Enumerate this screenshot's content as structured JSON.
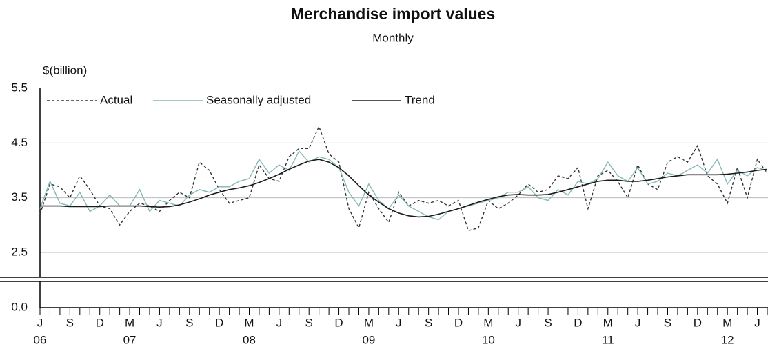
{
  "chart_data": {
    "type": "line",
    "title": "Merchandise import values",
    "subtitle": "Monthly",
    "y_label": "$(billion)",
    "x": [
      "2006-06",
      "2006-07",
      "2006-08",
      "2006-09",
      "2006-10",
      "2006-11",
      "2006-12",
      "2007-01",
      "2007-02",
      "2007-03",
      "2007-04",
      "2007-05",
      "2007-06",
      "2007-07",
      "2007-08",
      "2007-09",
      "2007-10",
      "2007-11",
      "2007-12",
      "2008-01",
      "2008-02",
      "2008-03",
      "2008-04",
      "2008-05",
      "2008-06",
      "2008-07",
      "2008-08",
      "2008-09",
      "2008-10",
      "2008-11",
      "2008-12",
      "2009-01",
      "2009-02",
      "2009-03",
      "2009-04",
      "2009-05",
      "2009-06",
      "2009-07",
      "2009-08",
      "2009-09",
      "2009-10",
      "2009-11",
      "2009-12",
      "2010-01",
      "2010-02",
      "2010-03",
      "2010-04",
      "2010-05",
      "2010-06",
      "2010-07",
      "2010-08",
      "2010-09",
      "2010-10",
      "2010-11",
      "2010-12",
      "2011-01",
      "2011-02",
      "2011-03",
      "2011-04",
      "2011-05",
      "2011-06",
      "2011-07",
      "2011-08",
      "2011-09",
      "2011-10",
      "2011-11",
      "2011-12",
      "2012-01",
      "2012-02",
      "2012-03",
      "2012-04",
      "2012-05",
      "2012-06",
      "2012-07"
    ],
    "series": [
      {
        "name": "Actual",
        "color": "#333333",
        "dashed": true,
        "values": [
          3.2,
          3.75,
          3.7,
          3.5,
          3.9,
          3.65,
          3.35,
          3.3,
          3.0,
          3.25,
          3.4,
          3.35,
          3.25,
          3.45,
          3.6,
          3.5,
          4.15,
          4.0,
          3.65,
          3.4,
          3.45,
          3.5,
          4.1,
          3.85,
          3.8,
          4.25,
          4.4,
          4.4,
          4.8,
          4.3,
          4.15,
          3.3,
          2.95,
          3.6,
          3.3,
          3.05,
          3.6,
          3.35,
          3.45,
          3.4,
          3.45,
          3.35,
          3.45,
          2.9,
          2.95,
          3.45,
          3.3,
          3.4,
          3.55,
          3.75,
          3.6,
          3.65,
          3.9,
          3.85,
          4.05,
          3.3,
          3.9,
          4.0,
          3.8,
          3.5,
          4.1,
          3.75,
          3.65,
          4.15,
          4.25,
          4.15,
          4.45,
          3.9,
          3.75,
          3.4,
          4.05,
          3.5,
          4.2,
          3.95
        ]
      },
      {
        "name": "Seasonally adjusted",
        "color": "#86b6b6",
        "dashed": false,
        "values": [
          3.3,
          3.8,
          3.4,
          3.35,
          3.6,
          3.25,
          3.35,
          3.55,
          3.35,
          3.35,
          3.65,
          3.25,
          3.45,
          3.4,
          3.35,
          3.55,
          3.65,
          3.6,
          3.7,
          3.7,
          3.8,
          3.85,
          4.2,
          3.95,
          4.1,
          4.0,
          4.35,
          4.15,
          4.25,
          4.2,
          4.05,
          3.6,
          3.35,
          3.75,
          3.45,
          3.3,
          3.55,
          3.35,
          3.25,
          3.15,
          3.1,
          3.25,
          3.3,
          3.35,
          3.4,
          3.45,
          3.5,
          3.6,
          3.6,
          3.7,
          3.5,
          3.45,
          3.65,
          3.55,
          3.8,
          3.75,
          3.85,
          4.15,
          3.9,
          3.8,
          4.05,
          3.75,
          3.8,
          3.95,
          3.9,
          4.0,
          4.1,
          3.95,
          4.2,
          3.75,
          4.0,
          3.9,
          4.05,
          4.0
        ]
      },
      {
        "name": "Trend",
        "color": "#1a1a1a",
        "dashed": false,
        "values": [
          3.35,
          3.35,
          3.35,
          3.34,
          3.34,
          3.34,
          3.34,
          3.35,
          3.35,
          3.35,
          3.35,
          3.34,
          3.33,
          3.34,
          3.37,
          3.42,
          3.48,
          3.55,
          3.6,
          3.65,
          3.68,
          3.72,
          3.78,
          3.85,
          3.93,
          4.02,
          4.1,
          4.17,
          4.2,
          4.15,
          4.05,
          3.9,
          3.72,
          3.55,
          3.42,
          3.3,
          3.22,
          3.17,
          3.15,
          3.16,
          3.2,
          3.25,
          3.3,
          3.36,
          3.42,
          3.47,
          3.52,
          3.55,
          3.56,
          3.55,
          3.55,
          3.56,
          3.6,
          3.65,
          3.7,
          3.75,
          3.8,
          3.82,
          3.82,
          3.8,
          3.8,
          3.82,
          3.85,
          3.88,
          3.9,
          3.92,
          3.92,
          3.92,
          3.92,
          3.93,
          3.95,
          3.97,
          4.0,
          4.02
        ]
      }
    ],
    "ylim": [
      0,
      5.5
    ],
    "yticks": [
      {
        "value": 0,
        "label": "0.0"
      },
      2.5,
      3.5,
      4.5,
      5.5
    ],
    "axis_break": true,
    "grid": true,
    "xticks": [
      {
        "value": "2006-06",
        "label": "J"
      },
      {
        "value": "2006-09",
        "label": "S"
      },
      {
        "value": "2006-12",
        "label": "D"
      },
      {
        "value": "2007-03",
        "label": "M"
      },
      {
        "value": "2007-06",
        "label": "J"
      },
      {
        "value": "2007-09",
        "label": "S"
      },
      {
        "value": "2007-12",
        "label": "D"
      },
      {
        "value": "2008-03",
        "label": "M"
      },
      {
        "value": "2008-06",
        "label": "J"
      },
      {
        "value": "2008-09",
        "label": "S"
      },
      {
        "value": "2008-12",
        "label": "D"
      },
      {
        "value": "2009-03",
        "label": "M"
      },
      {
        "value": "2009-06",
        "label": "J"
      },
      {
        "value": "2009-09",
        "label": "S"
      },
      {
        "value": "2009-12",
        "label": "D"
      },
      {
        "value": "2010-03",
        "label": "M"
      },
      {
        "value": "2010-06",
        "label": "J"
      },
      {
        "value": "2010-09",
        "label": "S"
      },
      {
        "value": "2010-12",
        "label": "D"
      },
      {
        "value": "2011-03",
        "label": "M"
      },
      {
        "value": "2011-06",
        "label": "J"
      },
      {
        "value": "2011-09",
        "label": "S"
      },
      {
        "value": "2011-12",
        "label": "D"
      },
      {
        "value": "2012-03",
        "label": "M"
      },
      {
        "value": "2012-06",
        "label": "J"
      }
    ],
    "year_labels": [
      {
        "value": "2006-06",
        "label": "06"
      },
      {
        "value": "2007-03",
        "label": "07"
      },
      {
        "value": "2008-03",
        "label": "08"
      },
      {
        "value": "2009-03",
        "label": "09"
      },
      {
        "value": "2010-03",
        "label": "10"
      },
      {
        "value": "2011-03",
        "label": "11"
      },
      {
        "value": "2012-03",
        "label": "12"
      }
    ],
    "legend": "top-left"
  }
}
